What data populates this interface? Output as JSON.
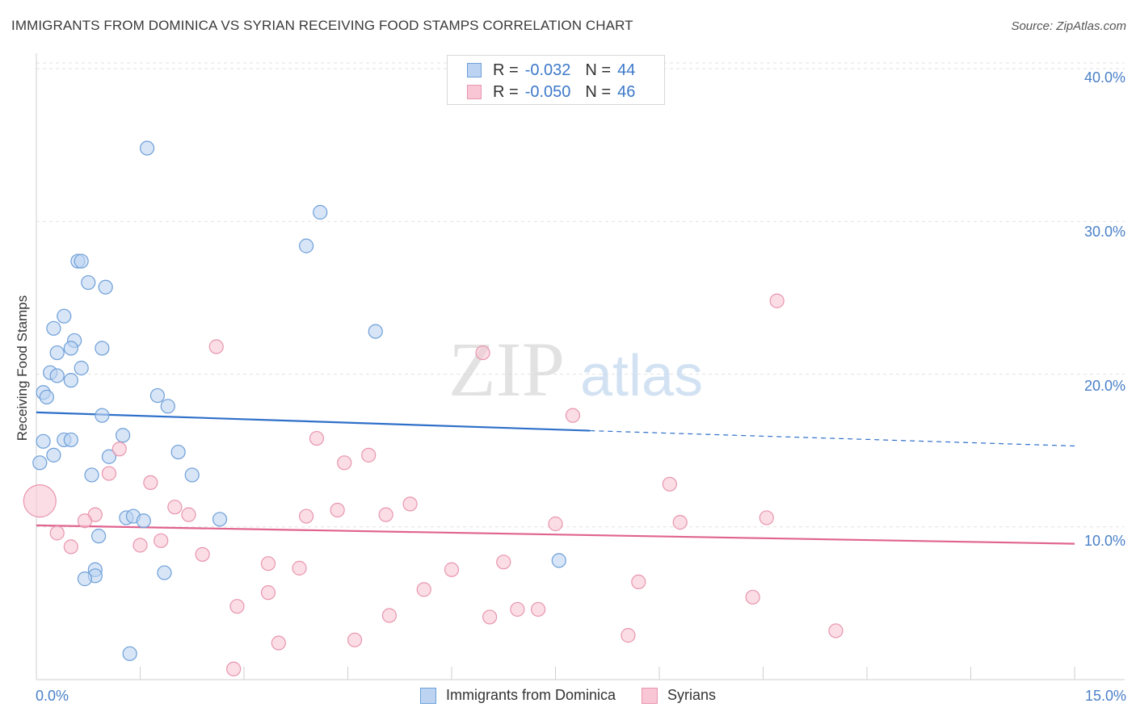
{
  "chart_data": {
    "type": "scatter",
    "title": "IMMIGRANTS FROM DOMINICA VS SYRIAN RECEIVING FOOD STAMPS CORRELATION CHART",
    "source": "Source: ZipAtlas.com",
    "ylabel": "Receiving Food Stamps",
    "xlabel": "",
    "xlim": [
      0,
      15
    ],
    "ylim": [
      0,
      40.8
    ],
    "y_ticks": [
      "40.0%",
      "30.0%",
      "20.0%",
      "10.0%"
    ],
    "x_ticks": [
      "0.0%",
      "15.0%"
    ],
    "watermark": {
      "zip": "ZIP",
      "atlas": "atlas"
    },
    "colors": {
      "dominica_fill": "#bcd4f2",
      "dominica_stroke": "#6e9fd8",
      "dominica_line": "#2e6fc9",
      "syrian_fill": "#f8c6d4",
      "syrian_stroke": "#e895ae",
      "syrian_line": "#e0638f",
      "grid": "#e2e2e2",
      "axis_text": "#4a80c8"
    },
    "series": [
      {
        "name": "Immigrants from Dominica",
        "r_label": "R =",
        "r_value": "-0.032",
        "n_label": "N =",
        "n_value": "44",
        "trend": {
          "x0": 0,
          "y0": 17.5,
          "x1": 8.0,
          "y1": 16.3,
          "x_end": 15.0,
          "y_end": 15.3
        },
        "points": [
          [
            1.6,
            34.8
          ],
          [
            4.1,
            30.6
          ],
          [
            3.9,
            28.4
          ],
          [
            0.6,
            27.4
          ],
          [
            0.65,
            27.4
          ],
          [
            0.75,
            26.0
          ],
          [
            1.0,
            25.7
          ],
          [
            0.4,
            23.8
          ],
          [
            0.25,
            23.0
          ],
          [
            4.9,
            22.8
          ],
          [
            0.55,
            22.2
          ],
          [
            0.5,
            21.7
          ],
          [
            0.3,
            21.4
          ],
          [
            0.95,
            21.7
          ],
          [
            0.2,
            20.1
          ],
          [
            0.3,
            19.9
          ],
          [
            0.65,
            20.4
          ],
          [
            0.5,
            19.6
          ],
          [
            0.1,
            18.8
          ],
          [
            0.15,
            18.5
          ],
          [
            1.75,
            18.6
          ],
          [
            1.9,
            17.9
          ],
          [
            0.95,
            17.3
          ],
          [
            1.25,
            16.0
          ],
          [
            0.1,
            15.6
          ],
          [
            0.4,
            15.7
          ],
          [
            0.5,
            15.7
          ],
          [
            0.25,
            14.7
          ],
          [
            2.05,
            14.9
          ],
          [
            1.05,
            14.6
          ],
          [
            0.05,
            14.2
          ],
          [
            0.8,
            13.4
          ],
          [
            2.25,
            13.4
          ],
          [
            1.3,
            10.6
          ],
          [
            1.4,
            10.7
          ],
          [
            1.55,
            10.4
          ],
          [
            2.65,
            10.5
          ],
          [
            0.9,
            9.4
          ],
          [
            7.55,
            7.8
          ],
          [
            0.85,
            7.2
          ],
          [
            0.85,
            6.8
          ],
          [
            0.7,
            6.6
          ],
          [
            1.85,
            7.0
          ],
          [
            1.35,
            1.7
          ]
        ]
      },
      {
        "name": "Syrians",
        "r_label": "R =",
        "r_value": "-0.050",
        "n_label": "N =",
        "n_value": "46",
        "trend": {
          "x0": 0,
          "y0": 10.1,
          "x1": 15.0,
          "y1": 8.9
        },
        "points": [
          [
            0.05,
            11.7
          ],
          [
            10.7,
            24.8
          ],
          [
            2.6,
            21.8
          ],
          [
            6.45,
            21.4
          ],
          [
            7.75,
            17.3
          ],
          [
            1.2,
            15.1
          ],
          [
            4.05,
            15.8
          ],
          [
            4.8,
            14.7
          ],
          [
            4.45,
            14.2
          ],
          [
            1.05,
            13.5
          ],
          [
            1.65,
            12.9
          ],
          [
            9.15,
            12.8
          ],
          [
            2.0,
            11.3
          ],
          [
            5.4,
            11.5
          ],
          [
            4.35,
            11.1
          ],
          [
            2.2,
            10.8
          ],
          [
            3.9,
            10.7
          ],
          [
            5.05,
            10.8
          ],
          [
            0.85,
            10.8
          ],
          [
            0.7,
            10.4
          ],
          [
            7.5,
            10.2
          ],
          [
            9.3,
            10.3
          ],
          [
            10.55,
            10.6
          ],
          [
            0.3,
            9.6
          ],
          [
            1.8,
            9.1
          ],
          [
            1.5,
            8.8
          ],
          [
            0.5,
            8.7
          ],
          [
            2.4,
            8.2
          ],
          [
            3.35,
            7.6
          ],
          [
            3.8,
            7.3
          ],
          [
            6.0,
            7.2
          ],
          [
            6.75,
            7.7
          ],
          [
            8.7,
            6.4
          ],
          [
            5.6,
            5.9
          ],
          [
            3.35,
            5.7
          ],
          [
            10.35,
            5.4
          ],
          [
            2.9,
            4.8
          ],
          [
            5.1,
            4.2
          ],
          [
            6.95,
            4.6
          ],
          [
            7.25,
            4.6
          ],
          [
            6.55,
            4.1
          ],
          [
            11.55,
            3.2
          ],
          [
            8.55,
            2.9
          ],
          [
            4.6,
            2.6
          ],
          [
            3.5,
            2.4
          ],
          [
            2.85,
            0.7
          ]
        ]
      }
    ]
  }
}
